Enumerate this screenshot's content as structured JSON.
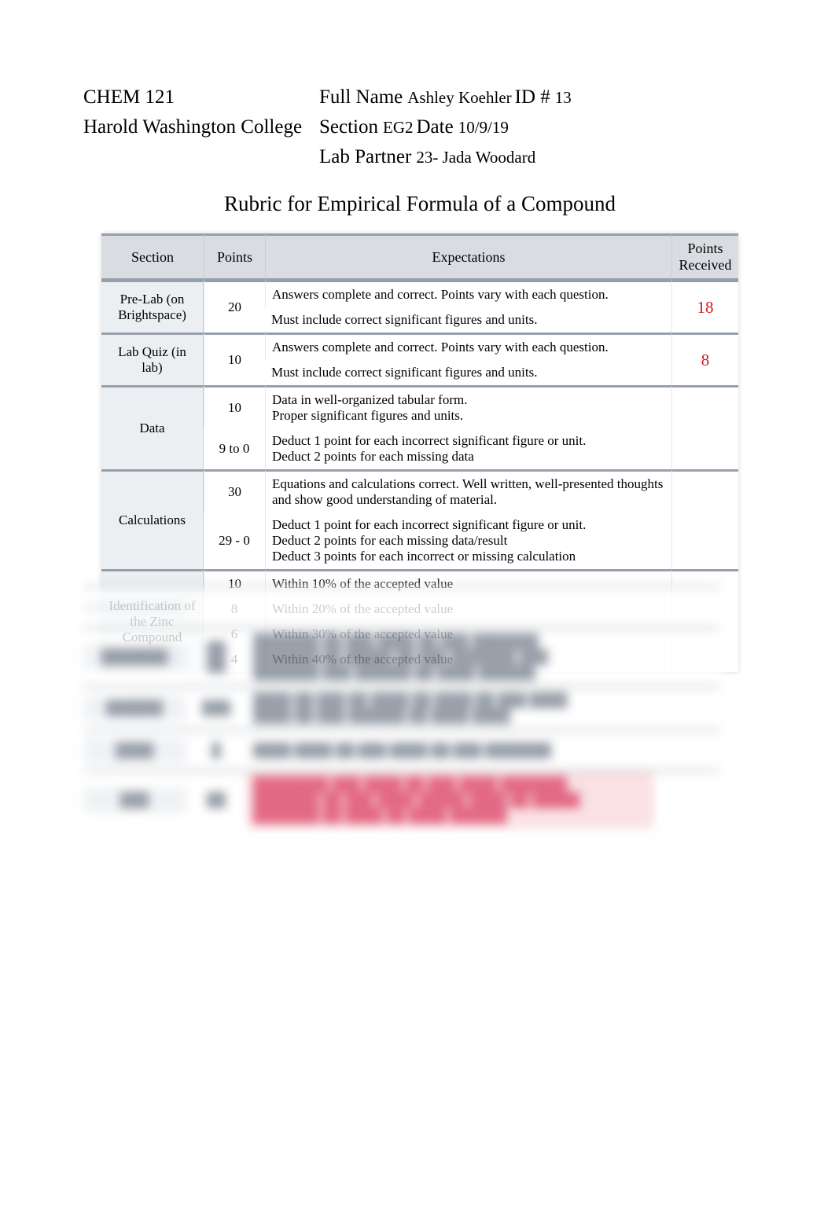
{
  "header": {
    "course": "CHEM 121",
    "college": "Harold Washington College",
    "fullname_label": "Full Name",
    "fullname_value": "Ashley Koehler",
    "id_label": "ID #",
    "id_value": "13",
    "section_label": "Section",
    "section_value": "EG2",
    "date_label": "Date",
    "date_value": "10/9/19",
    "partner_label": "Lab Partner",
    "partner_value": "23- Jada Woodard"
  },
  "title": "Rubric for Empirical Formula of a Compound",
  "columns": {
    "section": "Section",
    "points": "Points",
    "expectations": "Expectations",
    "received": "Points Received"
  },
  "rows": {
    "prelab": {
      "section": "Pre-Lab (on Brightspace)",
      "points": "20",
      "exp1": "Answers complete and correct. Points vary with each question.",
      "exp2": "Must include correct significant figures and units.",
      "received": "18"
    },
    "labquiz": {
      "section": "Lab Quiz (in lab)",
      "points": "10",
      "exp1": "Answers complete and correct.  Points vary with each question.",
      "exp2": "Must include correct significant figures and units.",
      "received": "8"
    },
    "data": {
      "section": "Data",
      "points_a": "10",
      "points_b": "9 to 0",
      "exp_a": "Data in well-organized tabular form.\nProper significant figures and units.",
      "exp_b": "Deduct 1 point for each incorrect significant figure or unit.\nDeduct 2 points for each missing data",
      "received": ""
    },
    "calc": {
      "section": "Calculations",
      "points_a": "30",
      "points_b": "29 - 0",
      "exp_a": "Equations and calculations correct.  Well written, well-presented thoughts and show good understanding of material.",
      "exp_b": "Deduct 1 point for each incorrect significant figure or unit.\nDeduct 2 points for each missing data/result\nDeduct 3 points for each incorrect or missing calculation",
      "received": ""
    },
    "ident": {
      "section": "Identification of the Zinc Compound",
      "p10": "10",
      "e10": "Within 10% of the accepted value",
      "p8": "8",
      "e8": "Within 20% of the accepted value",
      "p6": "6",
      "e6": "Within 30% of the accepted value",
      "p4": "4",
      "e4": "Within 40% of the accepted value",
      "received": ""
    }
  },
  "blurred": {
    "r1": {
      "sec": "",
      "pts": "",
      "exp": ""
    },
    "r2": {
      "sec": "",
      "pts": "",
      "exp": ""
    },
    "r3": {
      "sec": "",
      "pts": "",
      "exp": ""
    },
    "r4": {
      "sec": "",
      "pts": "",
      "exp": ""
    },
    "r5_late": {
      "sec": "",
      "pts": "",
      "exp": ""
    }
  },
  "style": {
    "header_bg": "#d9dde2",
    "section_col_bg": "#eceff2",
    "border_color": "#96a0ab",
    "score_color": "#d11a1a",
    "text_color": "#000000",
    "page_bg": "#ffffff",
    "base_fontsize_pt": 13,
    "header_fontsize_pt": 19,
    "title_fontsize_pt": 20,
    "score_fontsize_pt": 16
  }
}
